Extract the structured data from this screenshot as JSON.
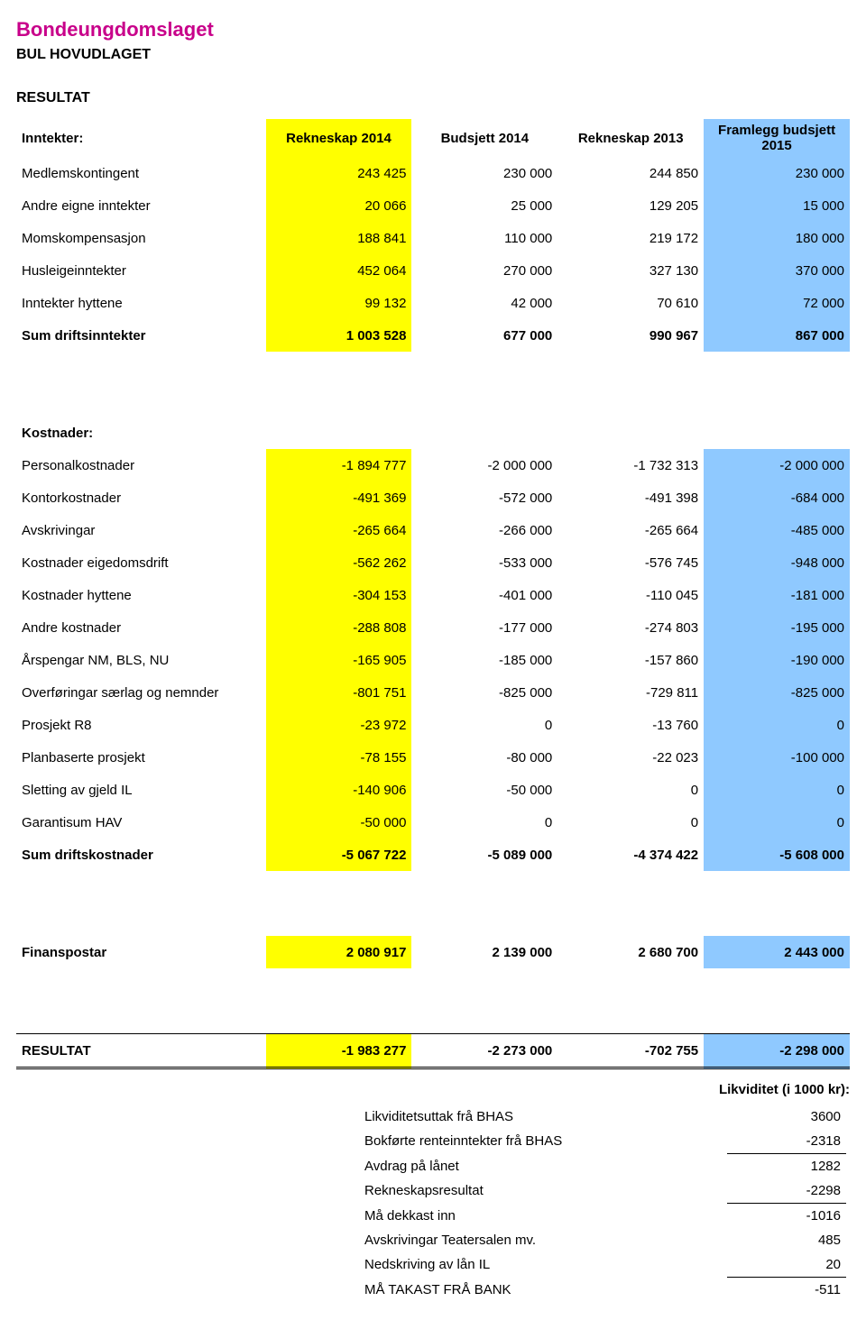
{
  "header": {
    "org": "Bondeungdomslaget",
    "sub": "BUL HOVUDLAGET",
    "resultat": "RESULTAT"
  },
  "columns": {
    "inntekter_label": "Inntekter:",
    "c1": "Rekneskap 2014",
    "c2": "Budsjett 2014",
    "c3": "Rekneskap 2013",
    "c4": "Framlegg budsjett 2015"
  },
  "inntekter_rows": [
    {
      "label": "Medlemskontingent",
      "v": [
        "243 425",
        "230 000",
        "244 850",
        "230 000"
      ]
    },
    {
      "label": "Andre eigne inntekter",
      "v": [
        "20 066",
        "25 000",
        "129 205",
        "15 000"
      ]
    },
    {
      "label": "Momskompensasjon",
      "v": [
        "188 841",
        "110 000",
        "219 172",
        "180 000"
      ]
    },
    {
      "label": "Husleigeinntekter",
      "v": [
        "452 064",
        "270 000",
        "327 130",
        "370 000"
      ]
    },
    {
      "label": "Inntekter hyttene",
      "v": [
        "99 132",
        "42 000",
        "70 610",
        "72 000"
      ]
    }
  ],
  "sum_driftsinntekter": {
    "label": "Sum driftsinntekter",
    "v": [
      "1 003 528",
      "677 000",
      "990 967",
      "867 000"
    ]
  },
  "kostnader_head": "Kostnader:",
  "kostnader_rows": [
    {
      "label": "Personalkostnader",
      "v": [
        "-1 894 777",
        "-2 000 000",
        "-1 732 313",
        "-2 000 000"
      ]
    },
    {
      "label": "Kontorkostnader",
      "v": [
        "-491 369",
        "-572 000",
        "-491 398",
        "-684 000"
      ]
    },
    {
      "label": "Avskrivingar",
      "v": [
        "-265 664",
        "-266 000",
        "-265 664",
        "-485 000"
      ]
    },
    {
      "label": "Kostnader eigedomsdrift",
      "v": [
        "-562 262",
        "-533 000",
        "-576 745",
        "-948 000"
      ]
    },
    {
      "label": "Kostnader hyttene",
      "v": [
        "-304 153",
        "-401 000",
        "-110 045",
        "-181 000"
      ]
    },
    {
      "label": "Andre kostnader",
      "v": [
        "-288 808",
        "-177 000",
        "-274 803",
        "-195 000"
      ]
    },
    {
      "label": "Årspengar NM, BLS, NU",
      "v": [
        "-165 905",
        "-185 000",
        "-157 860",
        "-190 000"
      ]
    },
    {
      "label": "Overføringar særlag og nemnder",
      "v": [
        "-801 751",
        "-825 000",
        "-729 811",
        "-825 000"
      ]
    },
    {
      "label": "Prosjekt R8",
      "v": [
        "-23 972",
        "0",
        "-13 760",
        "0"
      ]
    },
    {
      "label": "Planbaserte prosjekt",
      "v": [
        "-78 155",
        "-80 000",
        "-22 023",
        "-100 000"
      ]
    },
    {
      "label": "Sletting av gjeld IL",
      "v": [
        "-140 906",
        "-50 000",
        "0",
        "0"
      ]
    },
    {
      "label": "Garantisum HAV",
      "v": [
        "-50 000",
        "0",
        "0",
        "0"
      ]
    }
  ],
  "sum_driftskostnader": {
    "label": "Sum driftskostnader",
    "v": [
      "-5 067 722",
      "-5 089 000",
      "-4 374 422",
      "-5 608 000"
    ]
  },
  "finanspostar": {
    "label": "Finanspostar",
    "v": [
      "2 080 917",
      "2 139 000",
      "2 680 700",
      "2 443 000"
    ]
  },
  "resultat": {
    "label": "RESULTAT",
    "v": [
      "-1 983 277",
      "-2 273 000",
      "-702 755",
      "-2 298 000"
    ]
  },
  "likviditet": {
    "title": "Likviditet (i 1000 kr):",
    "rows": [
      {
        "label": "Likviditetsuttak frå BHAS",
        "v": "3600",
        "u": false
      },
      {
        "label": "Bokførte renteinntekter frå BHAS",
        "v": "-2318",
        "u": true
      },
      {
        "label": "Avdrag på lånet",
        "v": "1282",
        "u": false
      },
      {
        "label": "Rekneskapsresultat",
        "v": "-2298",
        "u": true
      },
      {
        "label": "Må dekkast inn",
        "v": "-1016",
        "u": false
      },
      {
        "label": "Avskrivingar Teatersalen mv.",
        "v": "485",
        "u": false
      },
      {
        "label": "Nedskriving av lån IL",
        "v": "20",
        "u": true
      },
      {
        "label": "MÅ TAKAST FRÅ BANK",
        "v": "-511",
        "u": false
      }
    ]
  },
  "colors": {
    "yellow": "#ffff00",
    "blue": "#8fc9ff",
    "magenta": "#c8008a"
  }
}
